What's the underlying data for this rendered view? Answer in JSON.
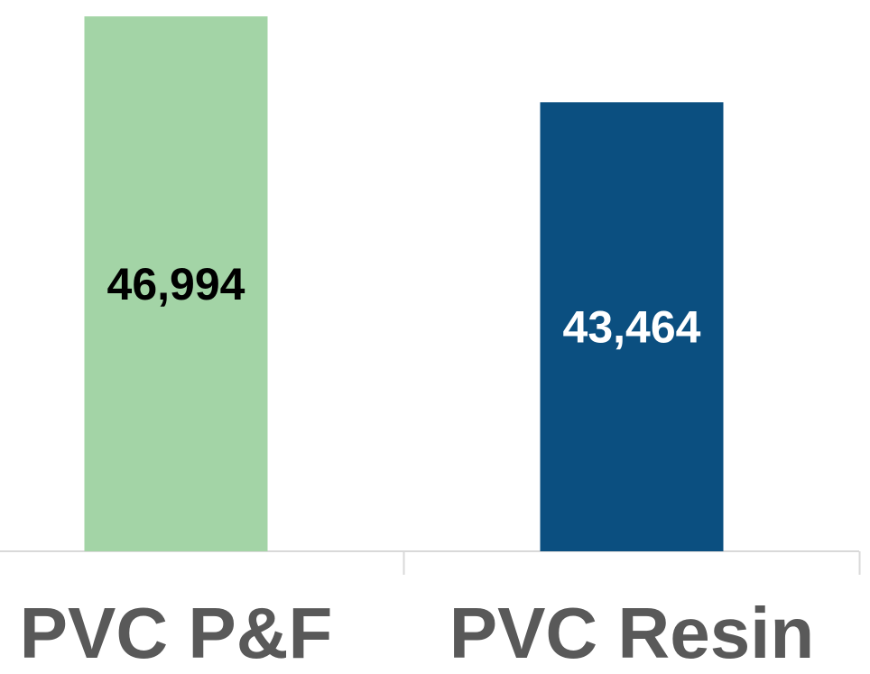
{
  "chart_data": {
    "type": "bar",
    "categories": [
      "PVC P&F",
      "PVC Resin"
    ],
    "values": [
      46994,
      43464
    ],
    "value_labels": [
      "46,994",
      "43,464"
    ],
    "colors": [
      "#a3d4a6",
      "#0b4f80"
    ],
    "ylim": [
      25000,
      47000
    ]
  }
}
